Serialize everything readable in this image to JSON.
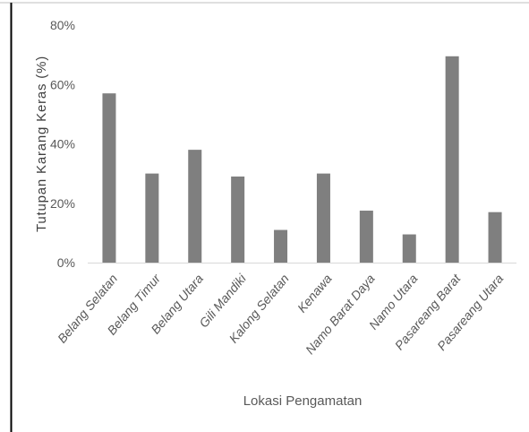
{
  "colors": {
    "bar": "#7f7f7f",
    "axis": "#d9d9d9",
    "text": "#595959",
    "ylabel_text": "#404040",
    "frame": "#000000",
    "top_border": "#bfbfbf"
  },
  "chart_data": {
    "type": "bar",
    "title": "",
    "xlabel": "Lokasi Pengamatan",
    "ylabel": "Tutupan Karang Keras (%)",
    "ylim": [
      0,
      80
    ],
    "yticks": [
      0,
      20,
      40,
      60,
      80
    ],
    "ytick_labels": [
      "0%",
      "20%",
      "40%",
      "60%",
      "80%"
    ],
    "grid": false,
    "legend": "none",
    "categories": [
      "Belang Selatan",
      "Belang Timur",
      "Belang Utara",
      "Gili Mandiki",
      "Kalong Selatan",
      "Kenawa",
      "Namo Barat Daya",
      "Namo Utara",
      "Pasareang Barat",
      "Pasareang Utara"
    ],
    "values": [
      57,
      30,
      38,
      29,
      11,
      30,
      17.5,
      9.5,
      69.5,
      17
    ]
  }
}
